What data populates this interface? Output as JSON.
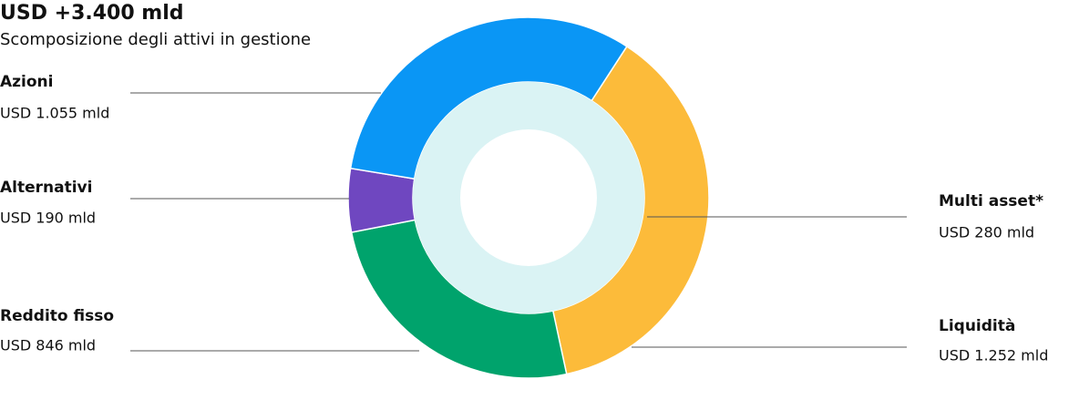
{
  "chart_data": {
    "type": "donut",
    "title": "USD +3.400 mld",
    "subtitle": "Scomposizione degli attivi in gestione",
    "slices": [
      {
        "label": "Liquidità",
        "value": 1252,
        "value_label": "USD 1.252 mld",
        "color": "#fcbb3a",
        "ring": "outer"
      },
      {
        "label": "Reddito fisso",
        "value": 846,
        "value_label": "USD 846 mld",
        "color": "#00a36c",
        "ring": "outer"
      },
      {
        "label": "Alternativi",
        "value": 190,
        "value_label": "USD 190 mld",
        "color": "#6f47c0",
        "ring": "outer"
      },
      {
        "label": "Azioni",
        "value": 1055,
        "value_label": "USD 1.055 mld",
        "color": "#0a96f5",
        "ring": "outer"
      },
      {
        "label": "Multi asset*",
        "value": 280,
        "value_label": "USD 280 mld",
        "color": "#daf3f4",
        "ring": "inner"
      }
    ]
  }
}
